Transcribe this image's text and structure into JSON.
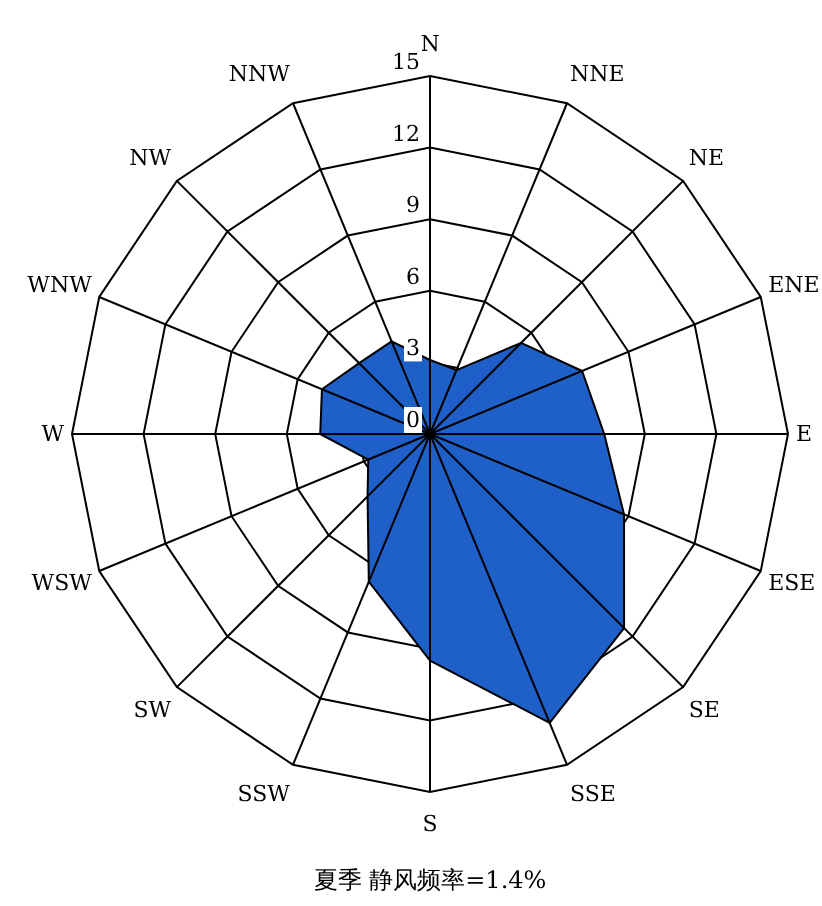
{
  "chart_data": {
    "type": "radar",
    "categories": [
      "N",
      "NNE",
      "NE",
      "ENE",
      "E",
      "ESE",
      "SE",
      "SSE",
      "S",
      "SSW",
      "SW",
      "WSW",
      "W",
      "WNW",
      "NW",
      "NNW"
    ],
    "series": [
      {
        "color": "#1f5fc8",
        "values": [
          3.1,
          2.9,
          5.4,
          6.9,
          7.3,
          8.8,
          11.5,
          13.1,
          9.5,
          6.7,
          3.7,
          2.8,
          4.6,
          4.9,
          4.2,
          4.2
        ]
      }
    ],
    "ylim": [
      0,
      15
    ],
    "yticks": [
      0,
      3,
      6,
      9,
      12,
      15
    ],
    "grid": true,
    "marker": "none",
    "annotations": [
      "夏季 静风频率=1.4%"
    ]
  }
}
